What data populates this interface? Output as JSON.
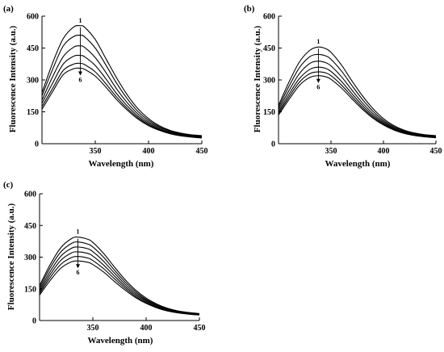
{
  "chart_data": [
    {
      "panel_label": "(a)",
      "type": "line",
      "xlabel": "Wavelength (nm)",
      "ylabel": "Fluorescence Intensity (a.u.)",
      "xlim": [
        300,
        450
      ],
      "ylim": [
        0,
        600
      ],
      "xticks": [
        "350",
        "400",
        "450"
      ],
      "yticks": [
        "0",
        "150",
        "300",
        "450",
        "600"
      ],
      "peak_x": 336,
      "annotation_top": "1",
      "annotation_bottom": "6",
      "series": [
        {
          "x": [
            300,
            310,
            320,
            330,
            336,
            340,
            350,
            360,
            370,
            380,
            390,
            400,
            410,
            420,
            430,
            440,
            450
          ],
          "values": [
            240,
            380,
            495,
            550,
            555,
            548,
            490,
            400,
            310,
            230,
            165,
            118,
            85,
            63,
            50,
            42,
            38
          ]
        },
        {
          "x": [
            300,
            310,
            320,
            330,
            336,
            340,
            350,
            360,
            370,
            380,
            390,
            400,
            410,
            420,
            430,
            440,
            450
          ],
          "values": [
            225,
            350,
            460,
            505,
            510,
            503,
            450,
            370,
            285,
            212,
            152,
            110,
            80,
            60,
            47,
            40,
            36
          ]
        },
        {
          "x": [
            300,
            310,
            320,
            330,
            336,
            340,
            350,
            360,
            370,
            380,
            390,
            400,
            410,
            420,
            430,
            440,
            450
          ],
          "values": [
            205,
            315,
            410,
            455,
            460,
            453,
            405,
            335,
            258,
            193,
            140,
            102,
            75,
            56,
            44,
            37,
            33
          ]
        },
        {
          "x": [
            300,
            310,
            320,
            330,
            336,
            340,
            350,
            360,
            370,
            380,
            390,
            400,
            410,
            420,
            430,
            440,
            450
          ],
          "values": [
            190,
            285,
            375,
            412,
            415,
            409,
            368,
            305,
            236,
            178,
            130,
            95,
            70,
            52,
            41,
            35,
            31
          ]
        },
        {
          "x": [
            300,
            310,
            320,
            330,
            336,
            340,
            350,
            360,
            370,
            380,
            390,
            400,
            410,
            420,
            430,
            440,
            450
          ],
          "values": [
            175,
            260,
            345,
            375,
            378,
            372,
            338,
            282,
            220,
            166,
            122,
            89,
            66,
            49,
            39,
            33,
            29
          ]
        },
        {
          "x": [
            300,
            310,
            320,
            330,
            336,
            340,
            350,
            360,
            370,
            380,
            390,
            400,
            410,
            420,
            430,
            440,
            450
          ],
          "values": [
            162,
            245,
            325,
            353,
            355,
            350,
            318,
            266,
            208,
            158,
            116,
            85,
            63,
            47,
            37,
            31,
            27
          ]
        }
      ]
    },
    {
      "panel_label": "(b)",
      "type": "line",
      "xlabel": "Wavelength (nm)",
      "ylabel": "Fluorescence Intensity (a.u.)",
      "xlim": [
        300,
        450
      ],
      "ylim": [
        0,
        600
      ],
      "xticks": [
        "350",
        "400",
        "450"
      ],
      "yticks": [
        "0",
        "150",
        "300",
        "450",
        "600"
      ],
      "peak_x": 338,
      "annotation_top": "1",
      "annotation_bottom": "6",
      "series": [
        {
          "x": [
            300,
            310,
            320,
            330,
            338,
            345,
            350,
            360,
            370,
            380,
            390,
            400,
            410,
            420,
            430,
            440,
            450
          ],
          "values": [
            180,
            290,
            385,
            440,
            455,
            447,
            430,
            370,
            295,
            225,
            165,
            118,
            85,
            63,
            50,
            42,
            38
          ]
        },
        {
          "x": [
            300,
            310,
            320,
            330,
            338,
            345,
            350,
            360,
            370,
            380,
            390,
            400,
            410,
            420,
            430,
            440,
            450
          ],
          "values": [
            170,
            270,
            358,
            410,
            420,
            413,
            397,
            342,
            273,
            208,
            153,
            110,
            80,
            60,
            47,
            40,
            35
          ]
        },
        {
          "x": [
            300,
            310,
            320,
            330,
            338,
            345,
            350,
            360,
            370,
            380,
            390,
            400,
            410,
            420,
            430,
            440,
            450
          ],
          "values": [
            160,
            250,
            330,
            378,
            388,
            381,
            366,
            315,
            252,
            192,
            142,
            103,
            75,
            56,
            44,
            37,
            33
          ]
        },
        {
          "x": [
            300,
            310,
            320,
            330,
            338,
            345,
            350,
            360,
            370,
            380,
            390,
            400,
            410,
            420,
            430,
            440,
            450
          ],
          "values": [
            150,
            233,
            307,
            350,
            360,
            354,
            340,
            293,
            235,
            180,
            133,
            97,
            71,
            53,
            42,
            35,
            31
          ]
        },
        {
          "x": [
            300,
            310,
            320,
            330,
            338,
            345,
            350,
            360,
            370,
            380,
            390,
            400,
            410,
            420,
            430,
            440,
            450
          ],
          "values": [
            142,
            220,
            290,
            330,
            338,
            333,
            320,
            276,
            222,
            170,
            126,
            92,
            67,
            50,
            40,
            34,
            30
          ]
        },
        {
          "x": [
            300,
            310,
            320,
            330,
            338,
            345,
            350,
            360,
            370,
            380,
            390,
            400,
            410,
            420,
            430,
            440,
            450
          ],
          "values": [
            135,
            208,
            275,
            312,
            320,
            315,
            303,
            262,
            211,
            162,
            120,
            88,
            64,
            48,
            38,
            32,
            28
          ]
        }
      ]
    },
    {
      "panel_label": "(c)",
      "type": "line",
      "xlabel": "Wavelength (nm)",
      "ylabel": "Fluorescence Intensity (a.u.)",
      "xlim": [
        300,
        450
      ],
      "ylim": [
        0,
        600
      ],
      "xticks": [
        "350",
        "400",
        "450"
      ],
      "yticks": [
        "0",
        "150",
        "300",
        "450",
        "600"
      ],
      "peak_x": 336,
      "annotation_top": "1",
      "annotation_bottom": "6",
      "series": [
        {
          "x": [
            300,
            310,
            320,
            330,
            336,
            345,
            350,
            360,
            370,
            380,
            390,
            400,
            410,
            420,
            430,
            440,
            450
          ],
          "values": [
            165,
            265,
            345,
            388,
            395,
            385,
            370,
            318,
            255,
            195,
            145,
            106,
            78,
            58,
            45,
            38,
            33
          ]
        },
        {
          "x": [
            300,
            310,
            320,
            330,
            336,
            345,
            350,
            360,
            370,
            380,
            390,
            400,
            410,
            420,
            430,
            440,
            450
          ],
          "values": [
            155,
            250,
            325,
            365,
            372,
            362,
            348,
            300,
            240,
            184,
            137,
            100,
            74,
            55,
            43,
            36,
            31
          ]
        },
        {
          "x": [
            300,
            310,
            320,
            330,
            336,
            345,
            350,
            360,
            370,
            380,
            390,
            400,
            410,
            420,
            430,
            440,
            450
          ],
          "values": [
            145,
            233,
            305,
            342,
            348,
            340,
            326,
            281,
            226,
            173,
            129,
            95,
            70,
            52,
            41,
            34,
            30
          ]
        },
        {
          "x": [
            300,
            310,
            320,
            330,
            336,
            345,
            350,
            360,
            370,
            380,
            390,
            400,
            410,
            420,
            430,
            440,
            450
          ],
          "values": [
            136,
            218,
            285,
            320,
            325,
            318,
            305,
            263,
            212,
            163,
            122,
            90,
            66,
            49,
            39,
            33,
            28
          ]
        },
        {
          "x": [
            300,
            310,
            320,
            330,
            336,
            345,
            350,
            360,
            370,
            380,
            390,
            400,
            410,
            420,
            430,
            440,
            450
          ],
          "values": [
            128,
            204,
            266,
            298,
            303,
            296,
            284,
            246,
            199,
            154,
            115,
            85,
            63,
            47,
            37,
            31,
            27
          ]
        },
        {
          "x": [
            300,
            310,
            320,
            330,
            336,
            345,
            350,
            360,
            370,
            380,
            390,
            400,
            410,
            420,
            430,
            440,
            450
          ],
          "values": [
            120,
            190,
            248,
            278,
            282,
            276,
            265,
            230,
            186,
            145,
            109,
            81,
            60,
            45,
            36,
            30,
            26
          ]
        }
      ]
    }
  ]
}
